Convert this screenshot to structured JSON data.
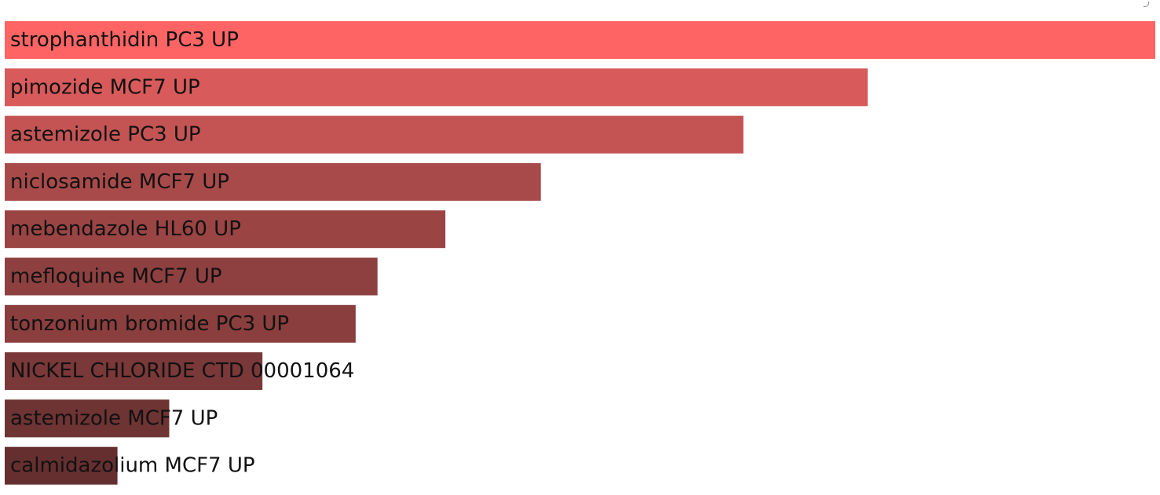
{
  "chart_data": {
    "type": "bar",
    "orientation": "horizontal",
    "categories": [
      "strophanthidin PC3 UP",
      "pimozide MCF7 UP",
      "astemizole PC3 UP",
      "niclosamide MCF7 UP",
      "mebendazole HL60 UP",
      "mefloquine MCF7 UP",
      "tonzonium bromide PC3 UP",
      "NICKEL CHLORIDE CTD 00001064",
      "astemizole MCF7 UP",
      "calmidazolium MCF7 UP"
    ],
    "values": [
      1.0,
      0.75,
      0.642,
      0.466,
      0.383,
      0.324,
      0.305,
      0.224,
      0.143,
      0.098
    ],
    "colors": [
      "#ff6464",
      "#d85a5a",
      "#c45454",
      "#a84a4a",
      "#9a4444",
      "#8e4040",
      "#8a3e3e",
      "#7a3838",
      "#6e3333",
      "#662f2f"
    ],
    "xlim": [
      0,
      1
    ],
    "title": "",
    "xlabel": "",
    "ylabel": "",
    "grid": false,
    "legend": "none",
    "labels_inside_bars": true
  }
}
